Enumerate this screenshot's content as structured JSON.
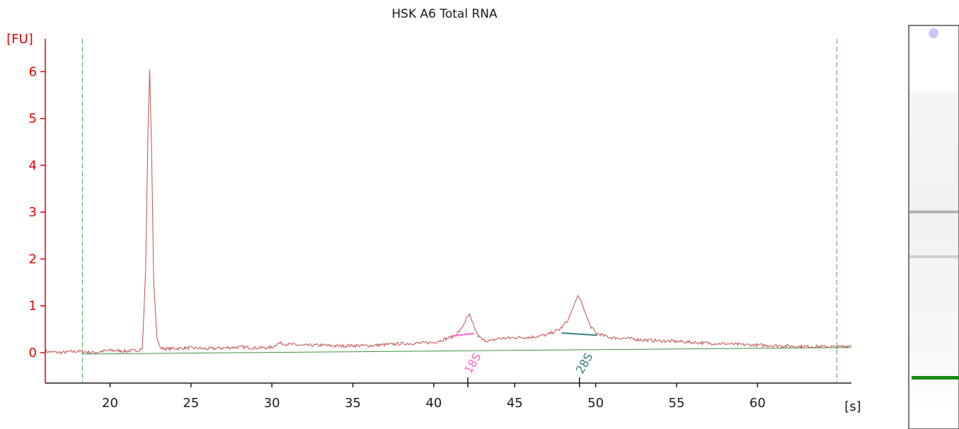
{
  "chart_data": {
    "type": "line",
    "title": "HSK A6 Total RNA",
    "ylabel": "[FU]",
    "xlabel": "[s]",
    "xlim": [
      16,
      65.8
    ],
    "ylim": [
      -0.65,
      6.7
    ],
    "xticks": [
      20,
      25,
      30,
      35,
      40,
      45,
      50,
      55,
      60
    ],
    "yticks": [
      0,
      1,
      2,
      3,
      4,
      5,
      6
    ],
    "grid": false,
    "markers": [
      18.3,
      64.9
    ],
    "baseline": {
      "x": [
        18.3,
        65.8
      ],
      "y": [
        -0.03,
        0.11
      ]
    },
    "peaks": [
      {
        "label": "18S",
        "x": 42.1,
        "color": "#ff66cc"
      },
      {
        "label": "28S",
        "x": 49.0,
        "color": "#337f7f"
      }
    ],
    "series": [
      {
        "color": "#c0504d",
        "x": [
          16.0,
          17.0,
          18.0,
          19.0,
          20.0,
          21.0,
          21.7,
          22.0,
          22.2,
          22.35,
          22.45,
          22.55,
          22.7,
          22.9,
          23.1,
          23.5,
          24.0,
          25.0,
          26.0,
          27.0,
          28.0,
          29.0,
          30.0,
          30.4,
          30.5,
          31.0,
          32.0,
          33.0,
          34.0,
          35.0,
          36.0,
          37.0,
          38.0,
          39.0,
          40.0,
          40.8,
          41.3,
          41.7,
          42.0,
          42.2,
          42.4,
          42.7,
          43.0,
          43.5,
          44.0,
          45.0,
          46.0,
          47.0,
          47.8,
          48.3,
          48.7,
          48.9,
          49.1,
          49.4,
          49.7,
          50.0,
          50.5,
          51.0,
          52.0,
          53.0,
          54.0,
          55.0,
          56.0,
          57.0,
          58.0,
          59.0,
          60.0,
          61.0,
          62.0,
          63.0,
          64.0,
          65.0,
          65.8
        ],
        "y": [
          0.02,
          0.0,
          0.03,
          0.0,
          0.05,
          0.03,
          0.05,
          0.1,
          1.8,
          4.8,
          6.05,
          4.6,
          1.5,
          0.3,
          0.1,
          0.08,
          0.09,
          0.1,
          0.08,
          0.1,
          0.12,
          0.1,
          0.11,
          0.2,
          0.2,
          0.18,
          0.15,
          0.16,
          0.14,
          0.15,
          0.15,
          0.17,
          0.19,
          0.2,
          0.22,
          0.3,
          0.36,
          0.5,
          0.72,
          0.8,
          0.62,
          0.38,
          0.27,
          0.25,
          0.3,
          0.32,
          0.33,
          0.38,
          0.5,
          0.7,
          1.05,
          1.22,
          1.1,
          0.8,
          0.55,
          0.42,
          0.36,
          0.32,
          0.3,
          0.27,
          0.25,
          0.24,
          0.22,
          0.2,
          0.19,
          0.17,
          0.16,
          0.15,
          0.14,
          0.13,
          0.13,
          0.12,
          0.15
        ]
      }
    ]
  },
  "gel": {
    "bands": [
      {
        "pos": 0.462,
        "darkness": 0.55
      },
      {
        "pos": 0.573,
        "darkness": 0.35
      }
    ],
    "marker_band": {
      "pos": 0.873,
      "color": "#1a8a1a"
    }
  }
}
